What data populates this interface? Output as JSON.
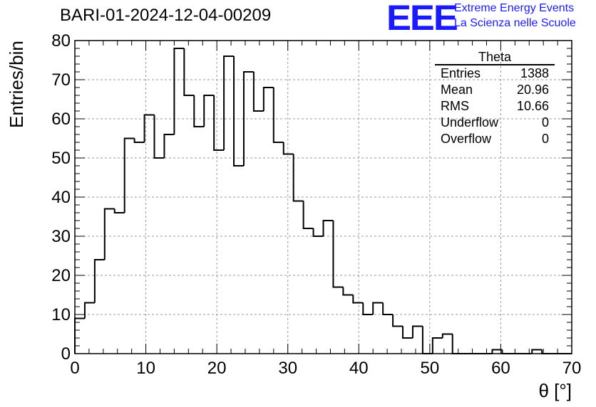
{
  "chart_data": {
    "type": "bar",
    "title": "BARI-01-2024-12-04-00209",
    "xlabel": "θ [°]",
    "ylabel": "Entries/bin",
    "xlim": [
      0,
      70
    ],
    "ylim": [
      0,
      80
    ],
    "bin_width": 1.4,
    "x_ticks": [
      0,
      10,
      20,
      30,
      40,
      50,
      60,
      70
    ],
    "y_ticks": [
      0,
      10,
      20,
      30,
      40,
      50,
      60,
      70,
      80
    ],
    "grid": true,
    "values": [
      9,
      13,
      24,
      37,
      36,
      55,
      54,
      61,
      50,
      56,
      78,
      66,
      58,
      66,
      52,
      76,
      48,
      72,
      62,
      68,
      54,
      51,
      39,
      32,
      30,
      34,
      17,
      15,
      13,
      10,
      13,
      10,
      7,
      4,
      7,
      0,
      4,
      5,
      0,
      0,
      0,
      0,
      1,
      0,
      0,
      0,
      1,
      0,
      0,
      0
    ],
    "legend": {
      "position": "top-right",
      "title": "Theta",
      "rows": [
        {
          "label": "Entries",
          "value": "1388"
        },
        {
          "label": "Mean",
          "value": "20.96"
        },
        {
          "label": "RMS",
          "value": "10.66"
        },
        {
          "label": "Underflow",
          "value": "0"
        },
        {
          "label": "Overflow",
          "value": "0"
        }
      ]
    }
  },
  "logo": {
    "mark": "EEE",
    "line1": "Extreme Energy Events",
    "line2": "La Scienza nelle Scuole",
    "color": "#1a1aff"
  }
}
